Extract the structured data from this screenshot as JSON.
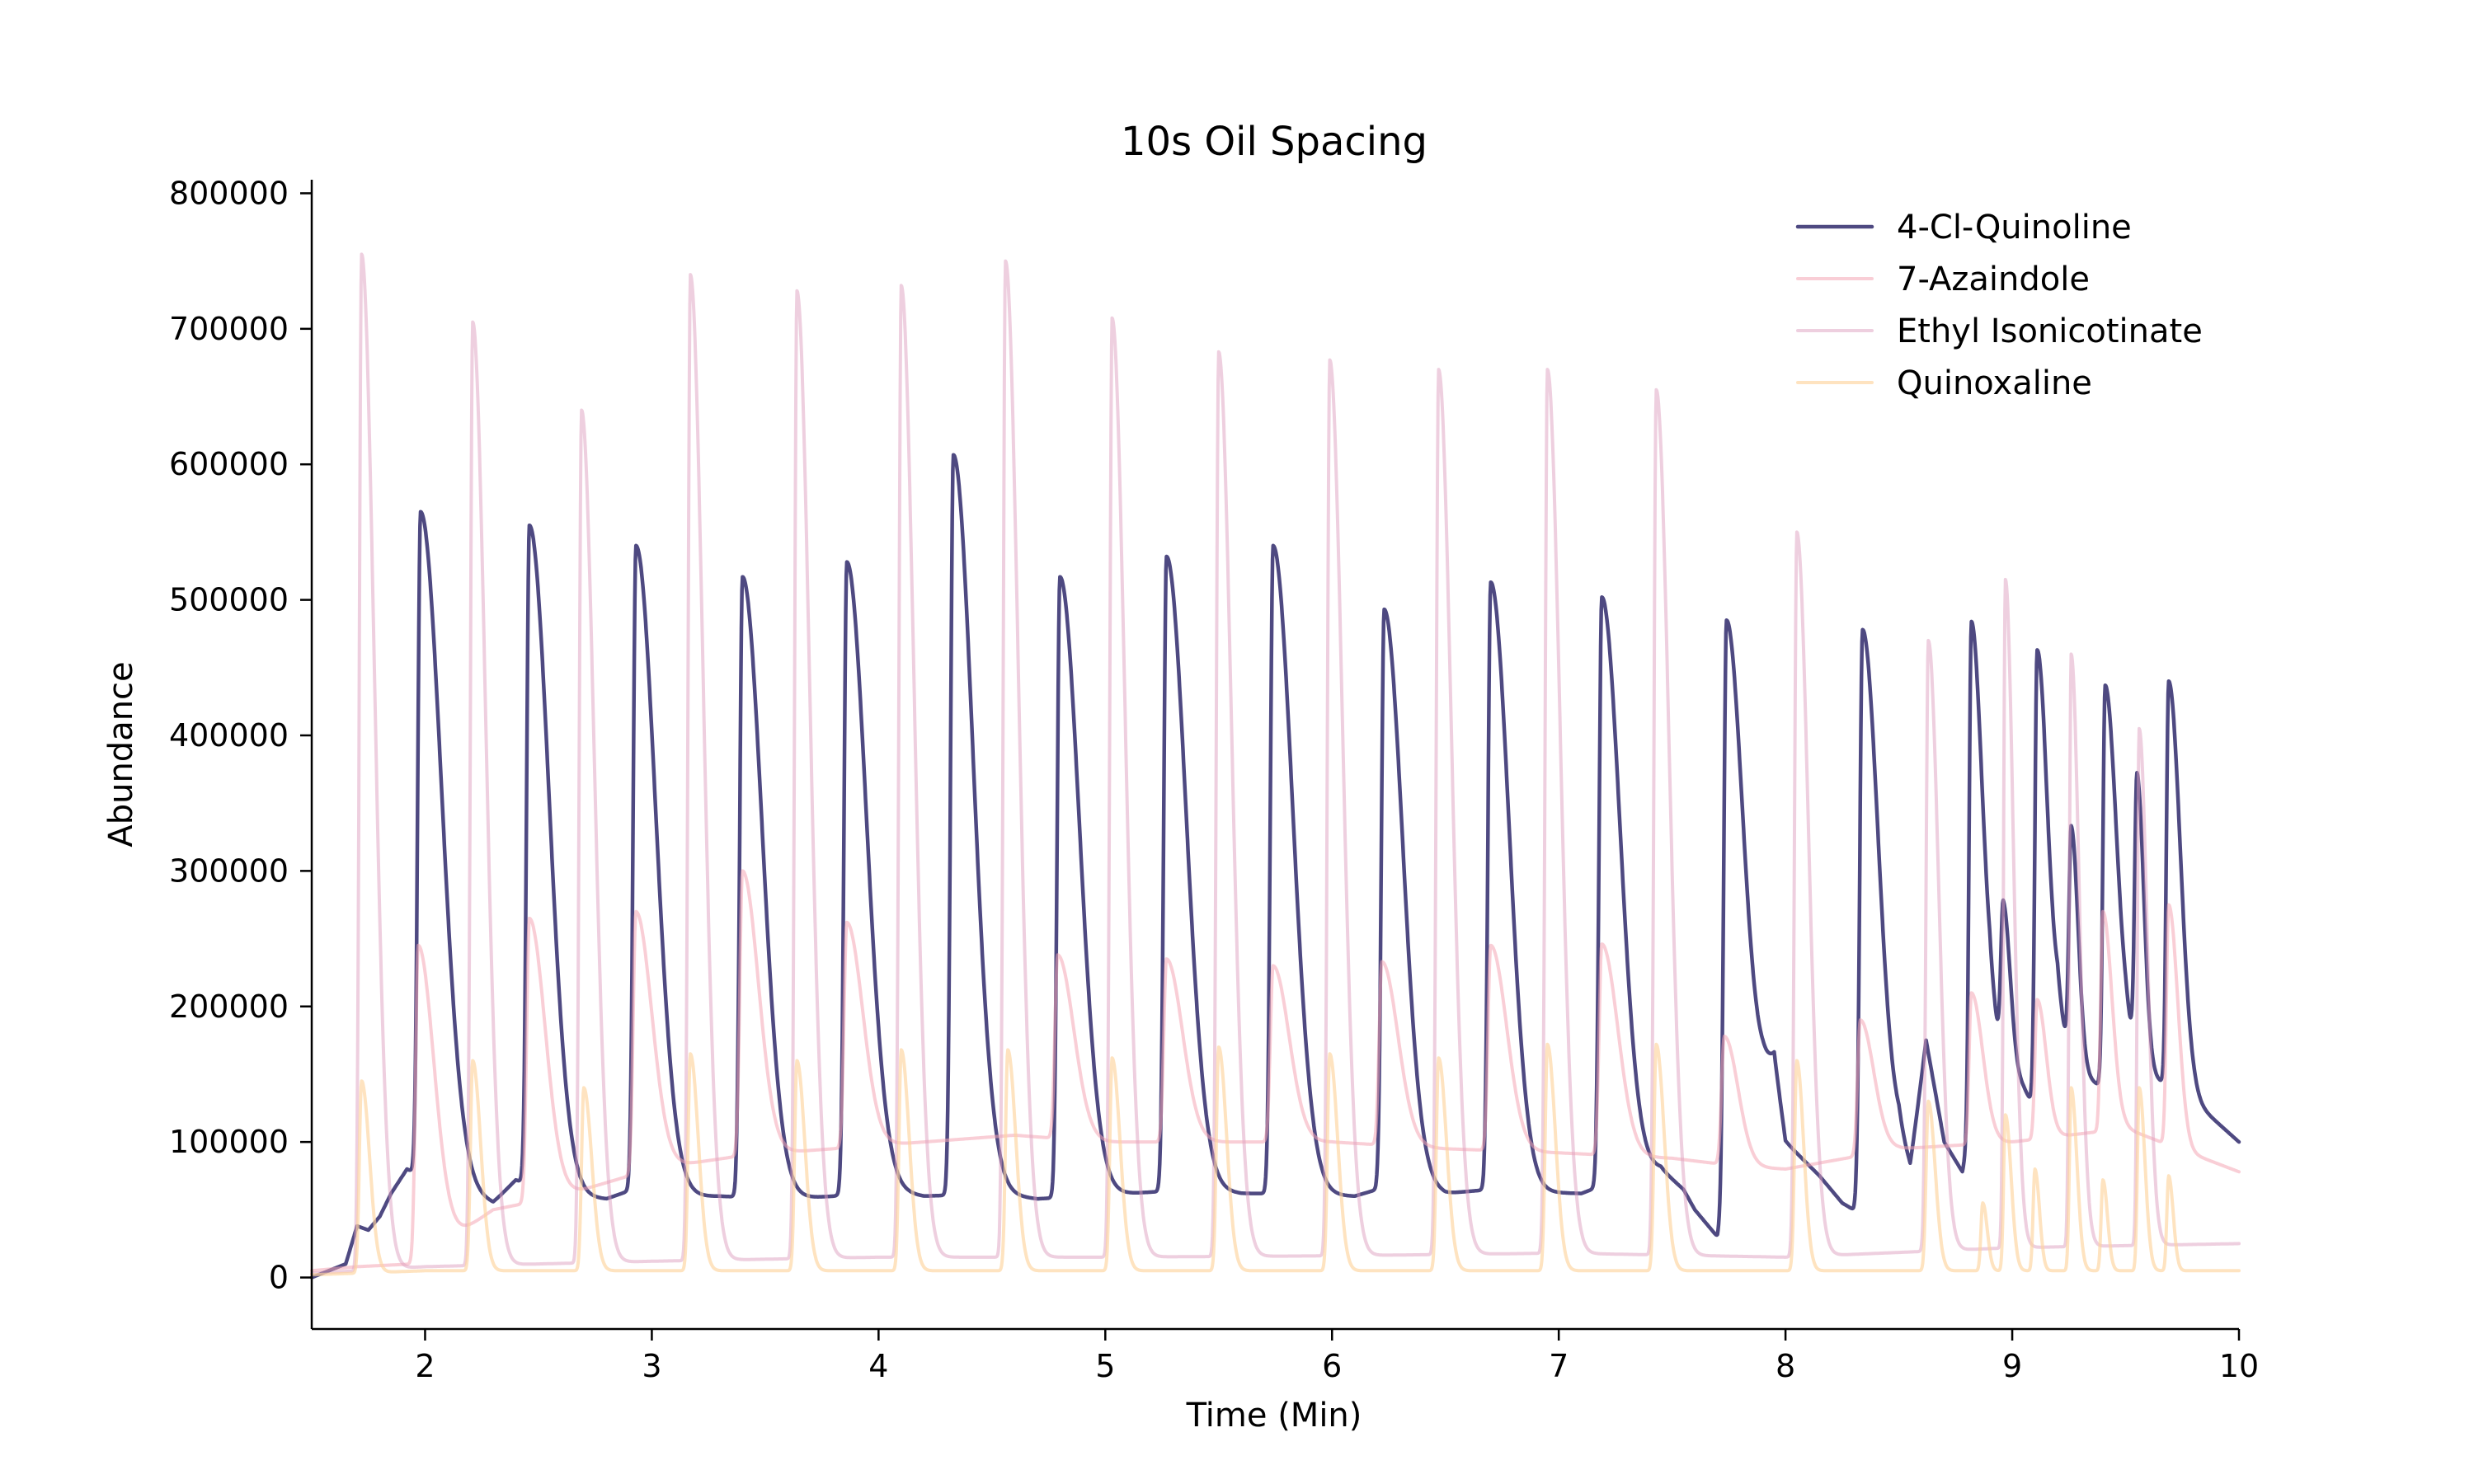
{
  "chart_data": {
    "type": "line",
    "title": "10s Oil Spacing",
    "xlabel": "Time (Min)",
    "ylabel": "Abundance",
    "xlim": [
      1.5,
      10
    ],
    "ylim": [
      -38000,
      810000
    ],
    "x_ticks": [
      "2",
      "3",
      "4",
      "5",
      "6",
      "7",
      "8",
      "9",
      "10"
    ],
    "y_ticks": [
      "0",
      "100000",
      "200000",
      "300000",
      "400000",
      "500000",
      "600000",
      "700000",
      "800000"
    ],
    "grid": false,
    "legend_position": "top-right",
    "series": [
      {
        "name": "4-Cl-Quinoline",
        "color": "#3b3573",
        "opacity": 0.9,
        "width": 4.5,
        "baseline": [
          [
            1.5,
            0
          ],
          [
            1.65,
            10000
          ],
          [
            1.7,
            38000
          ],
          [
            1.75,
            35000
          ],
          [
            1.8,
            45000
          ],
          [
            1.85,
            62000
          ],
          [
            1.92,
            80000
          ],
          [
            2.05,
            70000
          ],
          [
            2.2,
            60000
          ],
          [
            2.3,
            55000
          ],
          [
            2.4,
            72000
          ],
          [
            2.6,
            60000
          ],
          [
            2.8,
            58000
          ],
          [
            2.9,
            64000
          ],
          [
            3.1,
            60000
          ],
          [
            3.3,
            60000
          ],
          [
            3.6,
            58000
          ],
          [
            3.8,
            60000
          ],
          [
            4.0,
            65000
          ],
          [
            4.2,
            60000
          ],
          [
            4.5,
            62000
          ],
          [
            4.7,
            58000
          ],
          [
            4.9,
            60000
          ],
          [
            5.1,
            62000
          ],
          [
            5.4,
            65000
          ],
          [
            5.6,
            62000
          ],
          [
            5.8,
            62000
          ],
          [
            6.1,
            60000
          ],
          [
            6.3,
            70000
          ],
          [
            6.5,
            62000
          ],
          [
            6.7,
            65000
          ],
          [
            6.9,
            63000
          ],
          [
            7.1,
            62000
          ],
          [
            7.3,
            75000
          ],
          [
            7.45,
            80000
          ],
          [
            7.55,
            65000
          ],
          [
            7.6,
            50000
          ],
          [
            7.7,
            30000
          ],
          [
            7.9,
            140000
          ],
          [
            7.95,
            160000
          ],
          [
            8.0,
            100000
          ],
          [
            8.15,
            75000
          ],
          [
            8.25,
            55000
          ],
          [
            8.3,
            50000
          ],
          [
            8.5,
            100000
          ],
          [
            8.55,
            80000
          ],
          [
            8.62,
            175000
          ],
          [
            8.7,
            100000
          ],
          [
            8.78,
            78000
          ],
          [
            8.9,
            170000
          ],
          [
            9.05,
            140000
          ],
          [
            9.15,
            110000
          ],
          [
            9.2,
            175000
          ],
          [
            9.3,
            150000
          ],
          [
            9.4,
            140000
          ],
          [
            9.5,
            170000
          ],
          [
            9.6,
            150000
          ],
          [
            9.8,
            130000
          ],
          [
            10.0,
            100000
          ]
        ],
        "peaks": [
          [
            1.98,
            565000,
            0.012,
            0.09
          ],
          [
            2.46,
            555000,
            0.012,
            0.085
          ],
          [
            2.93,
            540000,
            0.012,
            0.085
          ],
          [
            3.4,
            517000,
            0.012,
            0.085
          ],
          [
            3.86,
            528000,
            0.012,
            0.085
          ],
          [
            4.33,
            607000,
            0.012,
            0.085
          ],
          [
            4.8,
            517000,
            0.012,
            0.085
          ],
          [
            5.27,
            532000,
            0.012,
            0.085
          ],
          [
            5.74,
            540000,
            0.012,
            0.085
          ],
          [
            6.23,
            493000,
            0.012,
            0.08
          ],
          [
            6.7,
            513000,
            0.012,
            0.08
          ],
          [
            7.19,
            502000,
            0.012,
            0.08
          ],
          [
            7.74,
            485000,
            0.012,
            0.075
          ],
          [
            8.34,
            478000,
            0.012,
            0.07
          ],
          [
            8.82,
            484000,
            0.01,
            0.05
          ],
          [
            8.96,
            272000,
            0.01,
            0.03
          ],
          [
            9.11,
            463000,
            0.01,
            0.05
          ],
          [
            9.26,
            330000,
            0.01,
            0.03
          ],
          [
            9.41,
            437000,
            0.01,
            0.05
          ],
          [
            9.55,
            367000,
            0.01,
            0.03
          ],
          [
            9.69,
            440000,
            0.01,
            0.05
          ]
        ]
      },
      {
        "name": "7-Azaindole",
        "color": "#f4a6b4",
        "opacity": 0.55,
        "width": 4,
        "baseline": [
          [
            1.5,
            5000
          ],
          [
            1.7,
            8000
          ],
          [
            1.95,
            10000
          ],
          [
            2.3,
            50000
          ],
          [
            2.6,
            60000
          ],
          [
            3.0,
            80000
          ],
          [
            3.4,
            90000
          ],
          [
            3.8,
            95000
          ],
          [
            4.2,
            100000
          ],
          [
            4.6,
            105000
          ],
          [
            5.0,
            100000
          ],
          [
            5.5,
            100000
          ],
          [
            6.0,
            100000
          ],
          [
            6.5,
            95000
          ],
          [
            7.0,
            92000
          ],
          [
            7.5,
            88000
          ],
          [
            7.8,
            82000
          ],
          [
            8.0,
            80000
          ],
          [
            8.5,
            95000
          ],
          [
            9.0,
            100000
          ],
          [
            9.5,
            110000
          ],
          [
            10.0,
            78000
          ]
        ],
        "peaks": [
          [
            1.97,
            245000,
            0.012,
            0.07
          ],
          [
            2.46,
            265000,
            0.012,
            0.07
          ],
          [
            2.93,
            270000,
            0.012,
            0.07
          ],
          [
            3.4,
            300000,
            0.012,
            0.07
          ],
          [
            3.86,
            262000,
            0.012,
            0.07
          ],
          [
            4.79,
            238000,
            0.012,
            0.07
          ],
          [
            5.27,
            235000,
            0.012,
            0.07
          ],
          [
            5.74,
            230000,
            0.012,
            0.07
          ],
          [
            6.22,
            233000,
            0.012,
            0.07
          ],
          [
            6.7,
            245000,
            0.012,
            0.07
          ],
          [
            7.19,
            246000,
            0.012,
            0.07
          ],
          [
            7.73,
            178000,
            0.012,
            0.06
          ],
          [
            8.33,
            190000,
            0.012,
            0.06
          ],
          [
            8.82,
            210000,
            0.01,
            0.05
          ],
          [
            9.11,
            205000,
            0.01,
            0.04
          ],
          [
            9.4,
            270000,
            0.01,
            0.04
          ],
          [
            9.69,
            275000,
            0.01,
            0.04
          ]
        ]
      },
      {
        "name": "Ethyl Isonicotinate",
        "color": "#dda0c0",
        "opacity": 0.5,
        "width": 4,
        "baseline": [
          [
            1.5,
            3000
          ],
          [
            2.0,
            8000
          ],
          [
            3.0,
            12000
          ],
          [
            4.0,
            15000
          ],
          [
            5.0,
            15000
          ],
          [
            6.0,
            16000
          ],
          [
            7.0,
            18000
          ],
          [
            8.0,
            15000
          ],
          [
            9.0,
            22000
          ],
          [
            10.0,
            25000
          ]
        ],
        "peaks": [
          [
            1.72,
            755000,
            0.01,
            0.055
          ],
          [
            2.21,
            705000,
            0.01,
            0.055
          ],
          [
            2.69,
            640000,
            0.01,
            0.055
          ],
          [
            3.17,
            740000,
            0.01,
            0.055
          ],
          [
            3.64,
            728000,
            0.01,
            0.055
          ],
          [
            4.1,
            732000,
            0.01,
            0.055
          ],
          [
            4.56,
            750000,
            0.01,
            0.055
          ],
          [
            5.03,
            708000,
            0.01,
            0.055
          ],
          [
            5.5,
            683000,
            0.01,
            0.055
          ],
          [
            5.99,
            677000,
            0.01,
            0.055
          ],
          [
            6.47,
            670000,
            0.01,
            0.055
          ],
          [
            6.95,
            670000,
            0.01,
            0.055
          ],
          [
            7.43,
            655000,
            0.01,
            0.055
          ],
          [
            8.05,
            550000,
            0.01,
            0.05
          ],
          [
            8.63,
            470000,
            0.01,
            0.045
          ],
          [
            8.97,
            515000,
            0.008,
            0.035
          ],
          [
            9.26,
            460000,
            0.008,
            0.035
          ],
          [
            9.56,
            405000,
            0.008,
            0.035
          ]
        ]
      },
      {
        "name": "Quinoxaline",
        "color": "#fdd49e",
        "opacity": 0.65,
        "width": 4,
        "baseline": [
          [
            1.5,
            2000
          ],
          [
            2.0,
            5000
          ],
          [
            5.0,
            5000
          ],
          [
            8.0,
            5000
          ],
          [
            10.0,
            5000
          ]
        ],
        "peaks": [
          [
            1.72,
            145000,
            0.01,
            0.035
          ],
          [
            2.21,
            160000,
            0.01,
            0.035
          ],
          [
            2.7,
            140000,
            0.01,
            0.035
          ],
          [
            3.17,
            165000,
            0.01,
            0.035
          ],
          [
            3.64,
            160000,
            0.01,
            0.035
          ],
          [
            4.1,
            168000,
            0.01,
            0.035
          ],
          [
            4.57,
            168000,
            0.01,
            0.035
          ],
          [
            5.03,
            162000,
            0.01,
            0.035
          ],
          [
            5.5,
            170000,
            0.01,
            0.035
          ],
          [
            5.99,
            165000,
            0.01,
            0.035
          ],
          [
            6.47,
            162000,
            0.01,
            0.035
          ],
          [
            6.95,
            172000,
            0.01,
            0.035
          ],
          [
            7.43,
            172000,
            0.01,
            0.035
          ],
          [
            8.05,
            160000,
            0.01,
            0.03
          ],
          [
            8.63,
            130000,
            0.01,
            0.03
          ],
          [
            8.87,
            55000,
            0.008,
            0.02
          ],
          [
            8.97,
            120000,
            0.008,
            0.025
          ],
          [
            9.1,
            80000,
            0.008,
            0.02
          ],
          [
            9.26,
            140000,
            0.008,
            0.025
          ],
          [
            9.4,
            72000,
            0.008,
            0.02
          ],
          [
            9.56,
            140000,
            0.008,
            0.025
          ],
          [
            9.69,
            75000,
            0.008,
            0.02
          ]
        ]
      }
    ]
  }
}
